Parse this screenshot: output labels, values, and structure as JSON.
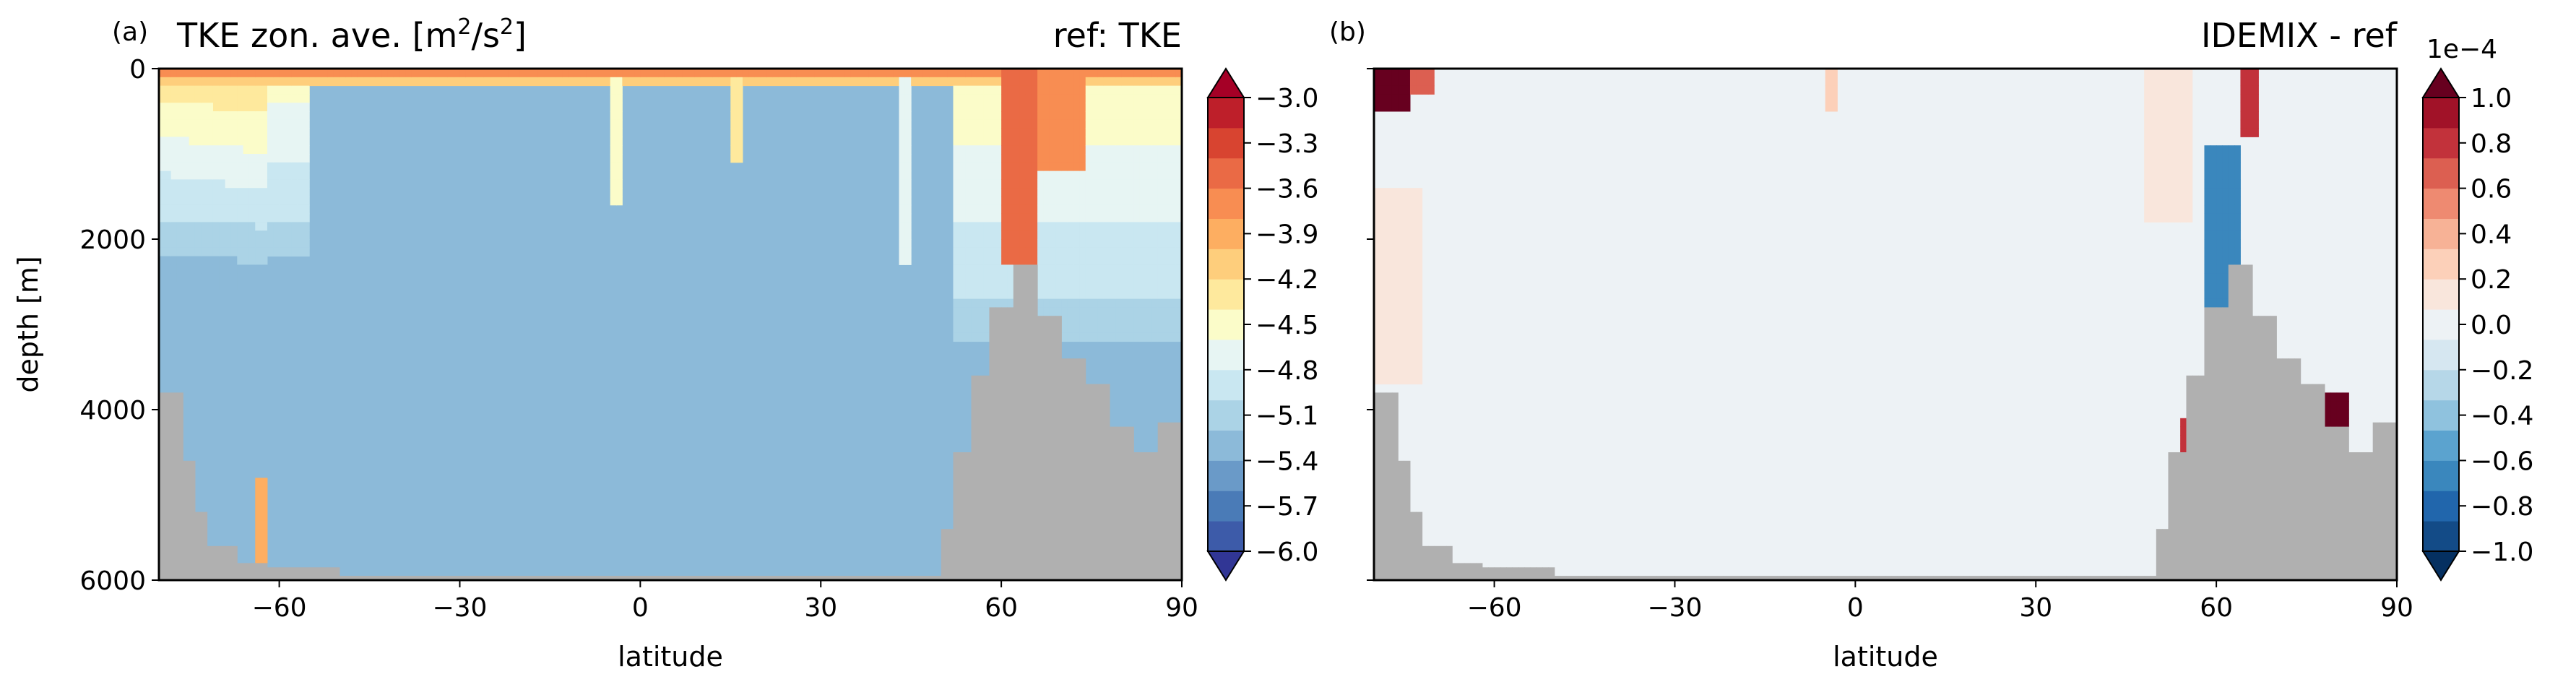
{
  "chart_data": [
    {
      "type": "heatmap",
      "panel_label": "(a)",
      "title_left": "TKE zon. ave. [m",
      "title_left_sup": "2",
      "title_left_mid": "/s",
      "title_left_sup2": "2",
      "title_left_end": "]",
      "title_right": "ref: TKE",
      "xlabel": "latitude",
      "ylabel": "depth [m]",
      "xlim": [
        -80,
        90
      ],
      "ylim": [
        6000,
        0
      ],
      "xticks": [
        -60,
        -30,
        0,
        30,
        60,
        90
      ],
      "xtick_labels": [
        "−60",
        "−30",
        "0",
        "30",
        "60",
        "90"
      ],
      "yticks": [
        0,
        2000,
        4000,
        6000
      ],
      "ytick_labels": [
        "0",
        "2000",
        "4000",
        "6000"
      ],
      "colorbar": {
        "extend": "both",
        "range": [
          -6.0,
          -3.0
        ],
        "ticks": [
          -3.0,
          -3.3,
          -3.6,
          -3.9,
          -4.2,
          -4.5,
          -4.8,
          -5.1,
          -5.4,
          -5.7,
          -6.0
        ],
        "tick_labels": [
          "−3.0",
          "−3.3",
          "−3.6",
          "−3.9",
          "−4.2",
          "−4.5",
          "−4.8",
          "−5.1",
          "−5.4",
          "−5.7",
          "−6.0"
        ],
        "colors": [
          "#313695",
          "#3d5ba9",
          "#4a7bb7",
          "#6a9ac8",
          "#8cbad9",
          "#abd3e6",
          "#c9e7f1",
          "#e7f5f3",
          "#fbfcc9",
          "#fee99d",
          "#fece7c",
          "#fdae61",
          "#f88d52",
          "#ea6a45",
          "#d84430",
          "#be1f2a",
          "#a50026"
        ]
      },
      "background_value": -5.35,
      "land_color": "#b0b0b0"
    },
    {
      "type": "heatmap",
      "panel_label": "(b)",
      "title_left": "",
      "title_right": "IDEMIX - ref",
      "xlabel": "latitude",
      "ylabel": "",
      "xlim": [
        -80,
        90
      ],
      "ylim": [
        6000,
        0
      ],
      "xticks": [
        -60,
        -30,
        0,
        30,
        60,
        90
      ],
      "xtick_labels": [
        "−60",
        "−30",
        "0",
        "30",
        "60",
        "90"
      ],
      "colorbar": {
        "extend": "both",
        "range": [
          -1.0,
          1.0
        ],
        "scale_label": "1e−4",
        "ticks": [
          1.0,
          0.8,
          0.6,
          0.4,
          0.2,
          0.0,
          -0.2,
          -0.4,
          -0.6,
          -0.8,
          -1.0
        ],
        "tick_labels": [
          "1.0",
          "0.8",
          "0.6",
          "0.4",
          "0.2",
          "0.0",
          "−0.2",
          "−0.4",
          "−0.6",
          "−0.8",
          "−1.0"
        ],
        "colors": [
          "#053061",
          "#134b87",
          "#2166ac",
          "#3a87bd",
          "#5ba3cf",
          "#8fc2de",
          "#b6d7e8",
          "#d6e7f1",
          "#edf2f5",
          "#f9e6dc",
          "#fcd0b9",
          "#f7b296",
          "#ee8a71",
          "#dc5f51",
          "#c2323b",
          "#a11228",
          "#67001f"
        ]
      },
      "background_value": 0.0,
      "land_color": "#b0b0b0"
    }
  ]
}
